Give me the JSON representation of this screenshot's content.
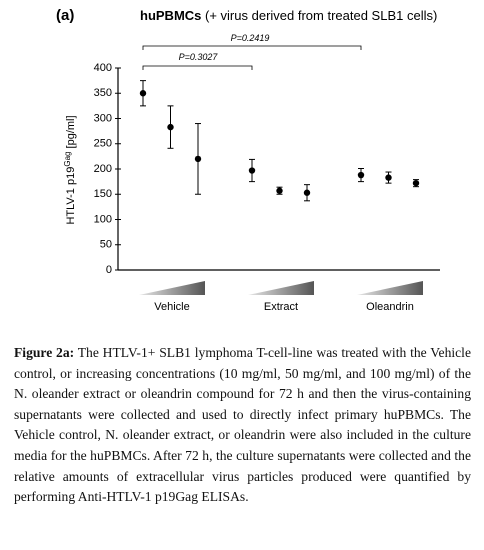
{
  "chart_data": {
    "type": "errorbar",
    "panel_label": "(a)",
    "title_bold": "huPBMCs",
    "title": "(+ virus derived from treated SLB1 cells)",
    "ylabel": {
      "main": "HTLV-1 p19",
      "sup": "Gag",
      "unit": "[pg/ml]"
    },
    "ylim": [
      0,
      400
    ],
    "yticks": [
      0,
      50,
      100,
      150,
      200,
      250,
      300,
      350,
      400
    ],
    "color": "#000000",
    "wedge_color": "#555555",
    "groups": [
      {
        "label": "Vehicle",
        "values": [
          350,
          283,
          220
        ],
        "errors": [
          25,
          42,
          70
        ]
      },
      {
        "label": "Extract",
        "values": [
          197,
          157,
          153
        ],
        "errors": [
          22,
          7,
          16
        ]
      },
      {
        "label": "Oleandrin",
        "values": [
          188,
          183,
          172
        ],
        "errors": [
          13,
          11,
          7
        ]
      }
    ],
    "annotations": [
      "P=0.2419",
      "P=0.3027"
    ]
  },
  "caption": {
    "label": "Figure 2a:",
    "text": "The HTLV-1+ SLB1 lymphoma T-cell-line was treated with the Vehicle control, or increasing concentrations (10 mg/ml, 50 mg/ml, and 100 mg/ml) of the N. oleander extract or oleandrin compound for 72 h and then the virus-containing supernatants were collected and used to directly infect primary huPBMCs. The Vehicle control, N. oleander extract, or oleandrin were also included in the culture media for the huPBMCs. After 72 h, the culture supernatants were collected and the relative amounts of extracellular virus particles produced were quantified by performing Anti-HTLV-1 p19Gag ELISAs."
  }
}
